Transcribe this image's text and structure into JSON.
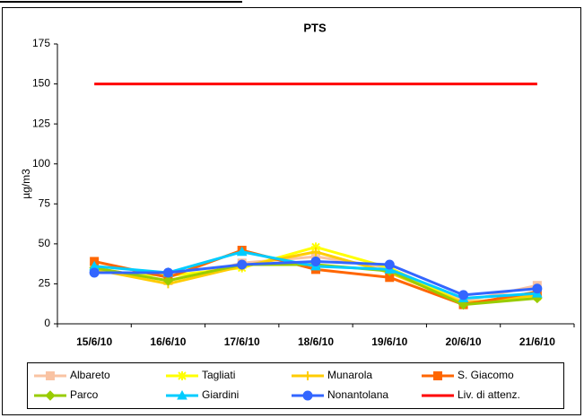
{
  "chart_data": {
    "type": "line",
    "title": "PTS",
    "y_label": "µg/m3",
    "categories": [
      "15/6/10",
      "16/6/10",
      "17/6/10",
      "18/6/10",
      "19/6/10",
      "20/6/10",
      "21/6/10"
    ],
    "ylim": [
      0,
      175
    ],
    "yticks": [
      0,
      25,
      50,
      75,
      100,
      125,
      150,
      175
    ],
    "grid": false,
    "legend": "bottom",
    "series": [
      {
        "name": "Albareto",
        "color": "#f9c3a3",
        "marker": "square",
        "values": [
          35,
          27,
          38,
          42,
          35,
          14,
          24
        ]
      },
      {
        "name": "Tagliati",
        "color": "#ffff00",
        "marker": "star",
        "values": [
          33,
          30,
          35,
          48,
          35,
          13,
          17
        ]
      },
      {
        "name": "Munarola",
        "color": "#ffcc00",
        "marker": "plus",
        "values": [
          34,
          25,
          36,
          45,
          32,
          13,
          18
        ]
      },
      {
        "name": "S. Giacomo",
        "color": "#ff6600",
        "marker": "square",
        "values": [
          39,
          29,
          46,
          34,
          29,
          12,
          20
        ]
      },
      {
        "name": "Parco",
        "color": "#99cc00",
        "marker": "diamond",
        "values": [
          35,
          27,
          37,
          37,
          33,
          12,
          16
        ]
      },
      {
        "name": "Giardini",
        "color": "#00ccff",
        "marker": "triangle",
        "values": [
          36,
          32,
          45,
          36,
          34,
          16,
          19
        ]
      },
      {
        "name": "Nonantolana",
        "color": "#3366ff",
        "marker": "circle",
        "values": [
          32,
          32,
          37,
          39,
          37,
          18,
          22
        ]
      },
      {
        "name": "Liv. di attenz.",
        "color": "#ff0000",
        "marker": "none",
        "values": [
          150,
          150,
          150,
          150,
          150,
          150,
          150
        ]
      }
    ]
  }
}
